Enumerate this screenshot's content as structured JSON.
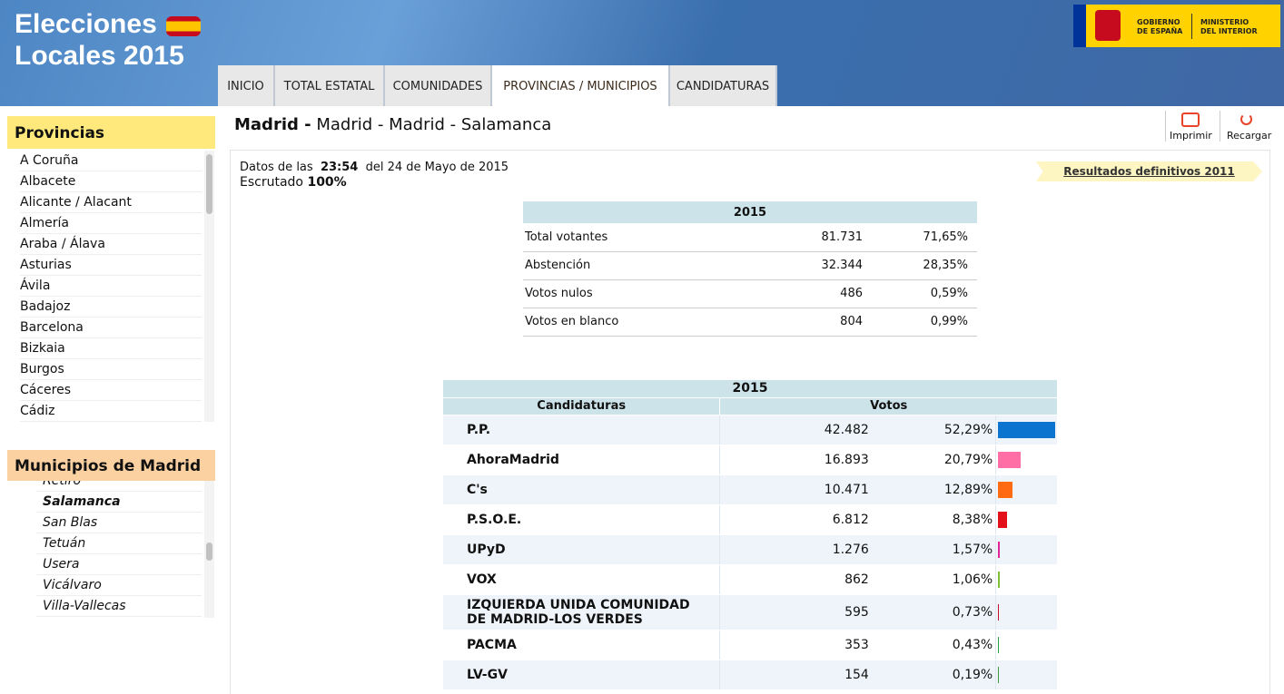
{
  "header": {
    "title_line1": "Elecciones",
    "title_line2": "Locales 2015",
    "gov_line1": "GOBIERNO",
    "gov_line2": "DE ESPAÑA",
    "min_line1": "MINISTERIO",
    "min_line2": "DEL INTERIOR"
  },
  "nav": {
    "tabs": [
      "INICIO",
      "TOTAL ESTATAL",
      "COMUNIDADES",
      "PROVINCIAS / MUNICIPIOS",
      "CANDIDATURAS"
    ],
    "active": 3
  },
  "sidebar": {
    "provinces_title": "Provincias",
    "provinces": [
      "A Coruña",
      "Albacete",
      "Alicante / Alacant",
      "Almería",
      "Araba / Álava",
      "Asturias",
      "Ávila",
      "Badajoz",
      "Barcelona",
      "Bizkaia",
      "Burgos",
      "Cáceres",
      "Cádiz"
    ],
    "municipios_title": "Municipios de Madrid",
    "municipios": [
      "Retiro",
      "Salamanca",
      "San Blas",
      "Tetuán",
      "Usera",
      "Vicálvaro",
      "Villa-Vallecas"
    ],
    "active_municipio": 1
  },
  "breadcrumb": {
    "bold": "Madrid -",
    "rest": "Madrid - Madrid - Salamanca"
  },
  "tools": [
    "Imprimir",
    "Recargar"
  ],
  "status": {
    "prefix": "Datos de las",
    "time": "23:54",
    "suffix": "del 24 de Mayo de 2015",
    "escrutado_label": "Escrutado",
    "escrutado_value": "100%"
  },
  "link": "Resultados definitivos 2011",
  "summary": {
    "year": "2015",
    "rows": [
      {
        "label": "Total votantes",
        "votes": "81.731",
        "pct": "71,65%"
      },
      {
        "label": "Abstención",
        "votes": "32.344",
        "pct": "28,35%"
      },
      {
        "label": "Votos nulos",
        "votes": "486",
        "pct": "0,59%"
      },
      {
        "label": "Votos en blanco",
        "votes": "804",
        "pct": "0,99%"
      }
    ]
  },
  "results": {
    "year": "2015",
    "headers": [
      "Candidaturas",
      "Votos"
    ],
    "rows": [
      {
        "name": "P.P.",
        "votes": "42.482",
        "pct": {
          "value": 52.29,
          "label": "52,29%"
        },
        "color": "#0b74cf"
      },
      {
        "name": "AhoraMadrid",
        "votes": "16.893",
        "pct": {
          "value": 20.79,
          "label": "20,79%"
        },
        "color": "#ff6fa6"
      },
      {
        "name": "C's",
        "votes": "10.471",
        "pct": {
          "value": 12.89,
          "label": "12,89%"
        },
        "color": "#ff6a13"
      },
      {
        "name": "P.S.O.E.",
        "votes": "6.812",
        "pct": {
          "value": 8.38,
          "label": "8,38%"
        },
        "color": "#e3101a"
      },
      {
        "name": "UPyD",
        "votes": "1.276",
        "pct": {
          "value": 1.57,
          "label": "1,57%"
        },
        "color": "#e2249a"
      },
      {
        "name": "VOX",
        "votes": "862",
        "pct": {
          "value": 1.06,
          "label": "1,06%"
        },
        "color": "#7fbf3b"
      },
      {
        "name": "IZQUIERDA UNIDA COMUNIDAD DE MADRID-LOS VERDES",
        "votes": "595",
        "pct": {
          "value": 0.73,
          "label": "0,73%"
        },
        "color": "#c8102e"
      },
      {
        "name": "PACMA",
        "votes": "353",
        "pct": {
          "value": 0.43,
          "label": "0,43%"
        },
        "color": "#2f9e4a"
      },
      {
        "name": "LV-GV",
        "votes": "154",
        "pct": {
          "value": 0.19,
          "label": "0,19%"
        },
        "color": "#3a9a3a"
      }
    ]
  }
}
